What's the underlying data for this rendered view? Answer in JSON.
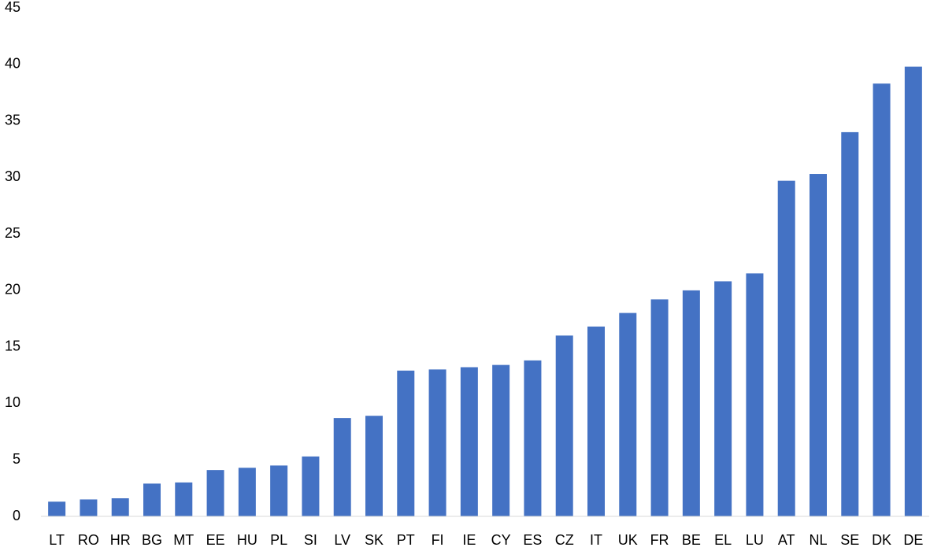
{
  "chart_data": {
    "type": "bar",
    "categories": [
      "LT",
      "RO",
      "HR",
      "BG",
      "MT",
      "EE",
      "HU",
      "PL",
      "SI",
      "LV",
      "SK",
      "PT",
      "FI",
      "IE",
      "CY",
      "ES",
      "CZ",
      "IT",
      "UK",
      "FR",
      "BE",
      "EL",
      "LU",
      "AT",
      "NL",
      "SE",
      "DK",
      "DE"
    ],
    "values": [
      1.3,
      1.5,
      1.6,
      2.9,
      3.0,
      4.1,
      4.3,
      4.5,
      5.3,
      8.7,
      8.9,
      12.9,
      13.0,
      13.2,
      13.4,
      13.8,
      16.0,
      16.8,
      18.0,
      19.2,
      20.0,
      20.8,
      21.5,
      29.7,
      30.3,
      34.0,
      38.3,
      39.8
    ],
    "color": "#4472c4",
    "ylim": [
      0,
      45
    ],
    "yticks": [
      0,
      5,
      10,
      15,
      20,
      25,
      30,
      35,
      40,
      45
    ],
    "grid": false
  }
}
